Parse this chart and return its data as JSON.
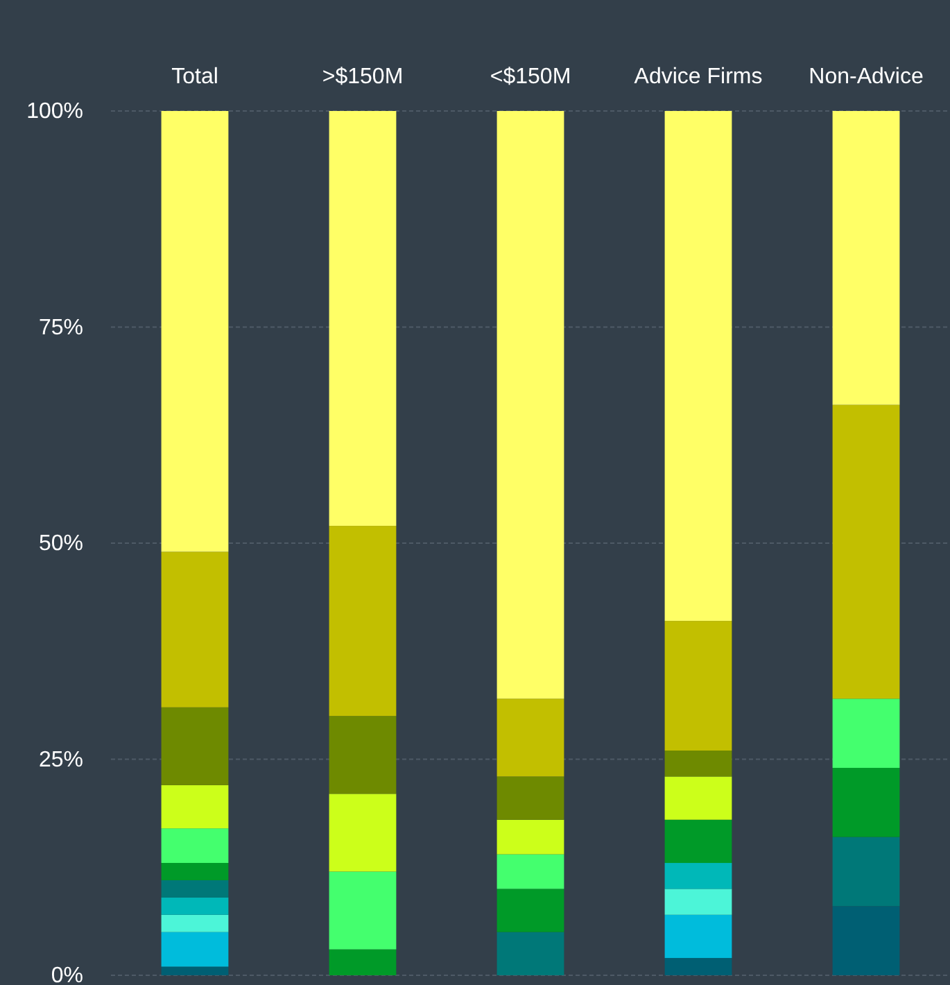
{
  "chart_data": {
    "type": "bar",
    "stacked": true,
    "categories": [
      "Total",
      ">$150M",
      "<$150M",
      "Advice Firms",
      "Non-Advice"
    ],
    "ylim": [
      0,
      100
    ],
    "yticks": [
      {
        "value": 0,
        "label": "0%"
      },
      {
        "value": 25,
        "label": "25%"
      },
      {
        "value": 50,
        "label": "50%"
      },
      {
        "value": 75,
        "label": "75%"
      },
      {
        "value": 100,
        "label": "100%"
      }
    ],
    "grid": "y",
    "series": [
      {
        "color": "#005f73",
        "values": [
          1,
          0,
          0,
          2,
          8
        ]
      },
      {
        "color": "#00bcdc",
        "values": [
          4,
          0,
          0,
          5,
          0
        ]
      },
      {
        "color": "#4cf5d8",
        "values": [
          2,
          0,
          0,
          3,
          0
        ]
      },
      {
        "color": "#00b8b8",
        "values": [
          2,
          0,
          0,
          3,
          0
        ]
      },
      {
        "color": "#007878",
        "values": [
          2,
          0,
          5,
          0,
          8
        ]
      },
      {
        "color": "#009a28",
        "values": [
          2,
          3,
          5,
          5,
          8
        ]
      },
      {
        "color": "#44ff6e",
        "values": [
          4,
          9,
          4,
          0,
          8
        ]
      },
      {
        "color": "#ccff1a",
        "values": [
          5,
          9,
          4,
          5,
          0
        ]
      },
      {
        "color": "#6e8a00",
        "values": [
          9,
          9,
          5,
          3,
          0
        ]
      },
      {
        "color": "#c2bf00",
        "values": [
          18,
          22,
          9,
          15,
          34
        ]
      },
      {
        "color": "#ffff66",
        "values": [
          51,
          48,
          68,
          59,
          34
        ]
      }
    ]
  }
}
